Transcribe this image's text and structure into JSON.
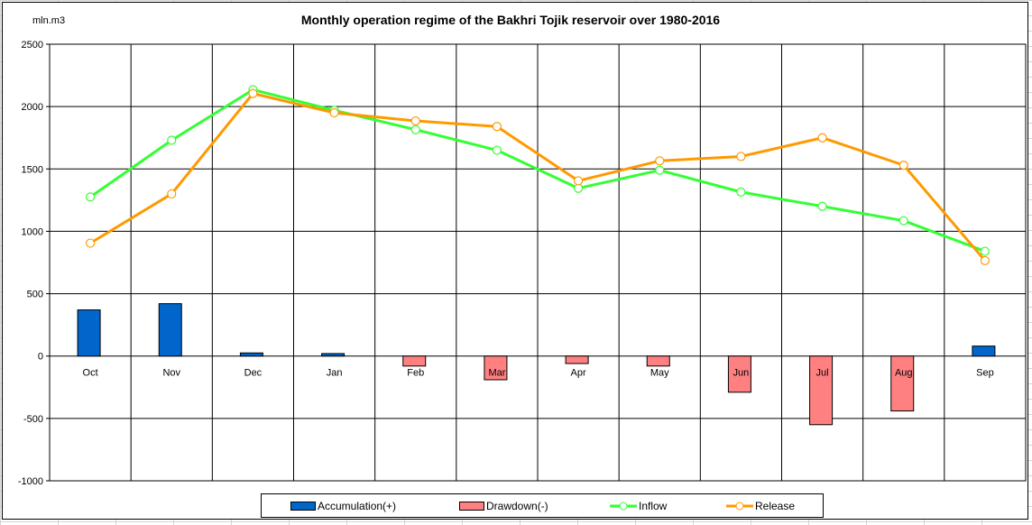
{
  "chart_data": {
    "type": "bar",
    "title": "Monthly operation regime of the Bakhri Tojik reservoir over 1980-2016",
    "ylabel": "mln.m3",
    "xlabel": "",
    "ylim": [
      -1000,
      2500
    ],
    "yticks": [
      -1000,
      -500,
      0,
      500,
      1000,
      1500,
      2000,
      2500
    ],
    "grid": true,
    "legend_position": "bottom",
    "categories": [
      "Oct",
      "Nov",
      "Dec",
      "Jan",
      "Feb",
      "Mar",
      "Apr",
      "May",
      "Jun",
      "Jul",
      "Aug",
      "Sep"
    ],
    "series": [
      {
        "name": "Accumulation(+)",
        "kind": "bar",
        "color": "#0066cc",
        "values": [
          370,
          420,
          25,
          20,
          0,
          0,
          0,
          0,
          0,
          0,
          0,
          80
        ]
      },
      {
        "name": "Drawdown(-)",
        "kind": "bar",
        "color": "#ff8080",
        "values": [
          0,
          0,
          0,
          0,
          -80,
          -190,
          -60,
          -80,
          -290,
          -550,
          -440,
          0
        ]
      },
      {
        "name": "Inflow",
        "kind": "line",
        "color": "#33ff33",
        "values": [
          1275,
          1730,
          2135,
          1970,
          1815,
          1650,
          1345,
          1490,
          1315,
          1200,
          1085,
          840
        ]
      },
      {
        "name": "Release",
        "kind": "line",
        "color": "#ff9900",
        "values": [
          905,
          1300,
          2105,
          1950,
          1885,
          1840,
          1405,
          1565,
          1600,
          1750,
          1530,
          765
        ]
      }
    ]
  }
}
